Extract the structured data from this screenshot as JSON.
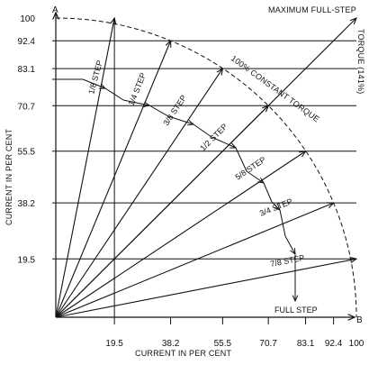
{
  "chart_data": {
    "type": "line",
    "point_labels": {
      "a": "A",
      "b": "B"
    },
    "xlabel": "CURRENT IN PER CENT",
    "ylabel": "CURRENT IN PER CENT",
    "right_label": "TORQUE (141%)",
    "top_label": "MAXIMUM FULL-STEP",
    "arc_label": "100% CONSTANT TORQUE",
    "x_ticks": [
      {
        "value": 19.5,
        "label": "19.5"
      },
      {
        "value": 38.2,
        "label": "38.2"
      },
      {
        "value": 55.5,
        "label": "55.5"
      },
      {
        "value": 70.7,
        "label": "70.7"
      },
      {
        "value": 83.1,
        "label": "83.1"
      },
      {
        "value": 92.4,
        "label": "92.4"
      },
      {
        "value": 100,
        "label": "100"
      }
    ],
    "y_ticks": [
      {
        "value": 100,
        "label": "100"
      },
      {
        "value": 92.4,
        "label": "92.4"
      },
      {
        "value": 83.1,
        "label": "83.1"
      },
      {
        "value": 70.7,
        "label": "70.7"
      },
      {
        "value": 55.5,
        "label": "55.5"
      },
      {
        "value": 38.2,
        "label": "38.2"
      },
      {
        "value": 19.5,
        "label": "19.5"
      }
    ],
    "xlim": [
      0,
      100
    ],
    "ylim": [
      0,
      100
    ],
    "vectors": [
      {
        "x": 19.5,
        "y": 100
      },
      {
        "x": 38.2,
        "y": 92.4
      },
      {
        "x": 55.5,
        "y": 83.1
      },
      {
        "x": 70.7,
        "y": 70.7
      },
      {
        "x": 83.1,
        "y": 55.5
      },
      {
        "x": 92.4,
        "y": 38.2
      },
      {
        "x": 100,
        "y": 19.5
      },
      {
        "x": 100,
        "y": 100
      }
    ],
    "step_labels": [
      "1/8 STEP",
      "1/4 STEP",
      "3/8 STEP",
      "1/2 STEP",
      "5/8 STEP",
      "3/4 STEP",
      "7/8 STEP",
      "FULL STEP"
    ]
  }
}
